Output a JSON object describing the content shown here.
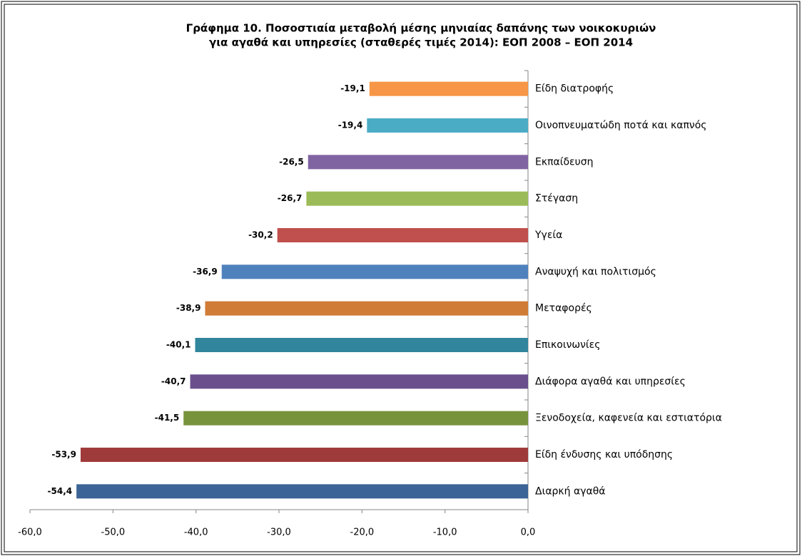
{
  "chart_data": {
    "type": "barh",
    "title": [
      "Γράφημα 10.  Ποσοστιαία μεταβολή μέσης μηνιαίας δαπάνης των νοικοκυριών",
      "για αγαθά και υπηρεσίες (σταθερές τιμές 2014): ΕΟΠ 2008 – ΕΟΠ 2014"
    ],
    "categories": [
      "Είδη διατροφής",
      "Οινοπνευματώδη ποτά και καπνός",
      "Εκπαίδευση",
      "Στέγαση",
      "Υγεία",
      "Αναψυχή και πολιτισμός",
      "Μεταφορές",
      "Επικοινωνίες",
      "Διάφορα αγαθά και υπηρεσίες",
      "Ξενοδοχεία, καφενεία και εστιατόρια",
      "Είδη ένδυσης και υπόδησης",
      "Διαρκή αγαθά"
    ],
    "values": [
      -19.1,
      -19.4,
      -26.5,
      -26.7,
      -30.2,
      -36.9,
      -38.9,
      -40.1,
      -40.7,
      -41.5,
      -53.9,
      -54.4
    ],
    "value_labels": [
      "-19,1",
      "-19,4",
      "-26,5",
      "-26,7",
      "-30,2",
      "-36,9",
      "-38,9",
      "-40,1",
      "-40,7",
      "-41,5",
      "-53,9",
      "-54,4"
    ],
    "colors": [
      "#f79646",
      "#4bacc6",
      "#8064a2",
      "#9bbb59",
      "#c0504d",
      "#4f81bd",
      "#d07c36",
      "#31859c",
      "#6a4f8c",
      "#77933c",
      "#9e3b3a",
      "#3c6496"
    ],
    "xlim": [
      -60,
      0
    ],
    "xticks": [
      {
        "value": -60,
        "label": "-60,0"
      },
      {
        "value": -50,
        "label": "-50,0"
      },
      {
        "value": -40,
        "label": "-40,0"
      },
      {
        "value": -30,
        "label": "-30,0"
      },
      {
        "value": -20,
        "label": "-20,0"
      },
      {
        "value": -10,
        "label": "-10,0"
      },
      {
        "value": 0,
        "label": "0,0"
      }
    ],
    "grid": false
  }
}
